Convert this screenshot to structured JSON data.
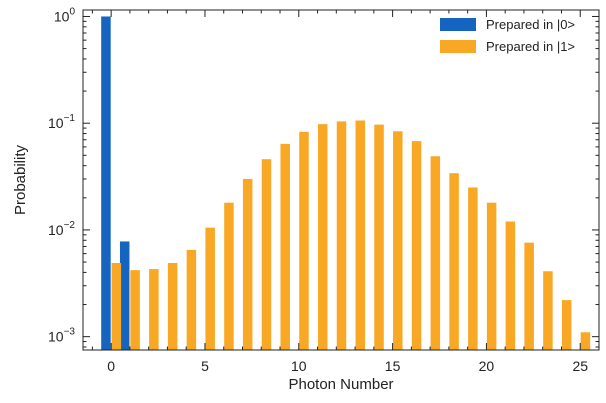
{
  "chart_data": {
    "type": "bar",
    "title": "",
    "xlabel": "Photon Number",
    "ylabel": "Probability",
    "xlim": [
      -1.5,
      26
    ],
    "ylim": [
      0.00075,
      1.15
    ],
    "yscale": "log",
    "x_ticks": [
      0,
      5,
      10,
      15,
      20,
      25
    ],
    "x_tick_labels": [
      "0",
      "5",
      "10",
      "15",
      "20",
      "25"
    ],
    "y_ticks": [
      1,
      0.1,
      0.01,
      0.001
    ],
    "y_tick_labels": [
      {
        "base": "10",
        "exp": "0"
      },
      {
        "base": "10",
        "exp": "−1"
      },
      {
        "base": "10",
        "exp": "−2"
      },
      {
        "base": "10",
        "exp": "−3"
      }
    ],
    "grid": false,
    "legend_position": "top-right",
    "categories": [
      0,
      1,
      2,
      3,
      4,
      5,
      6,
      7,
      8,
      9,
      10,
      11,
      12,
      13,
      14,
      15,
      16,
      17,
      18,
      19,
      20,
      21,
      22,
      23,
      24,
      25
    ],
    "series": [
      {
        "name": "Prepared in |0>",
        "color": "#1565c0",
        "values": [
          1.0,
          0.0078,
          null,
          null,
          null,
          null,
          null,
          null,
          null,
          null,
          null,
          null,
          null,
          null,
          null,
          null,
          null,
          null,
          null,
          null,
          null,
          null,
          null,
          null,
          null,
          null
        ]
      },
      {
        "name": "Prepared in |1>",
        "color": "#f9a825",
        "values": [
          0.0049,
          0.0042,
          0.0043,
          0.0049,
          0.0065,
          0.0105,
          0.018,
          0.03,
          0.046,
          0.064,
          0.083,
          0.098,
          0.104,
          0.106,
          0.097,
          0.084,
          0.068,
          0.049,
          0.034,
          0.025,
          0.018,
          0.012,
          0.0076,
          0.0041,
          0.0022,
          0.0011
        ]
      }
    ]
  }
}
